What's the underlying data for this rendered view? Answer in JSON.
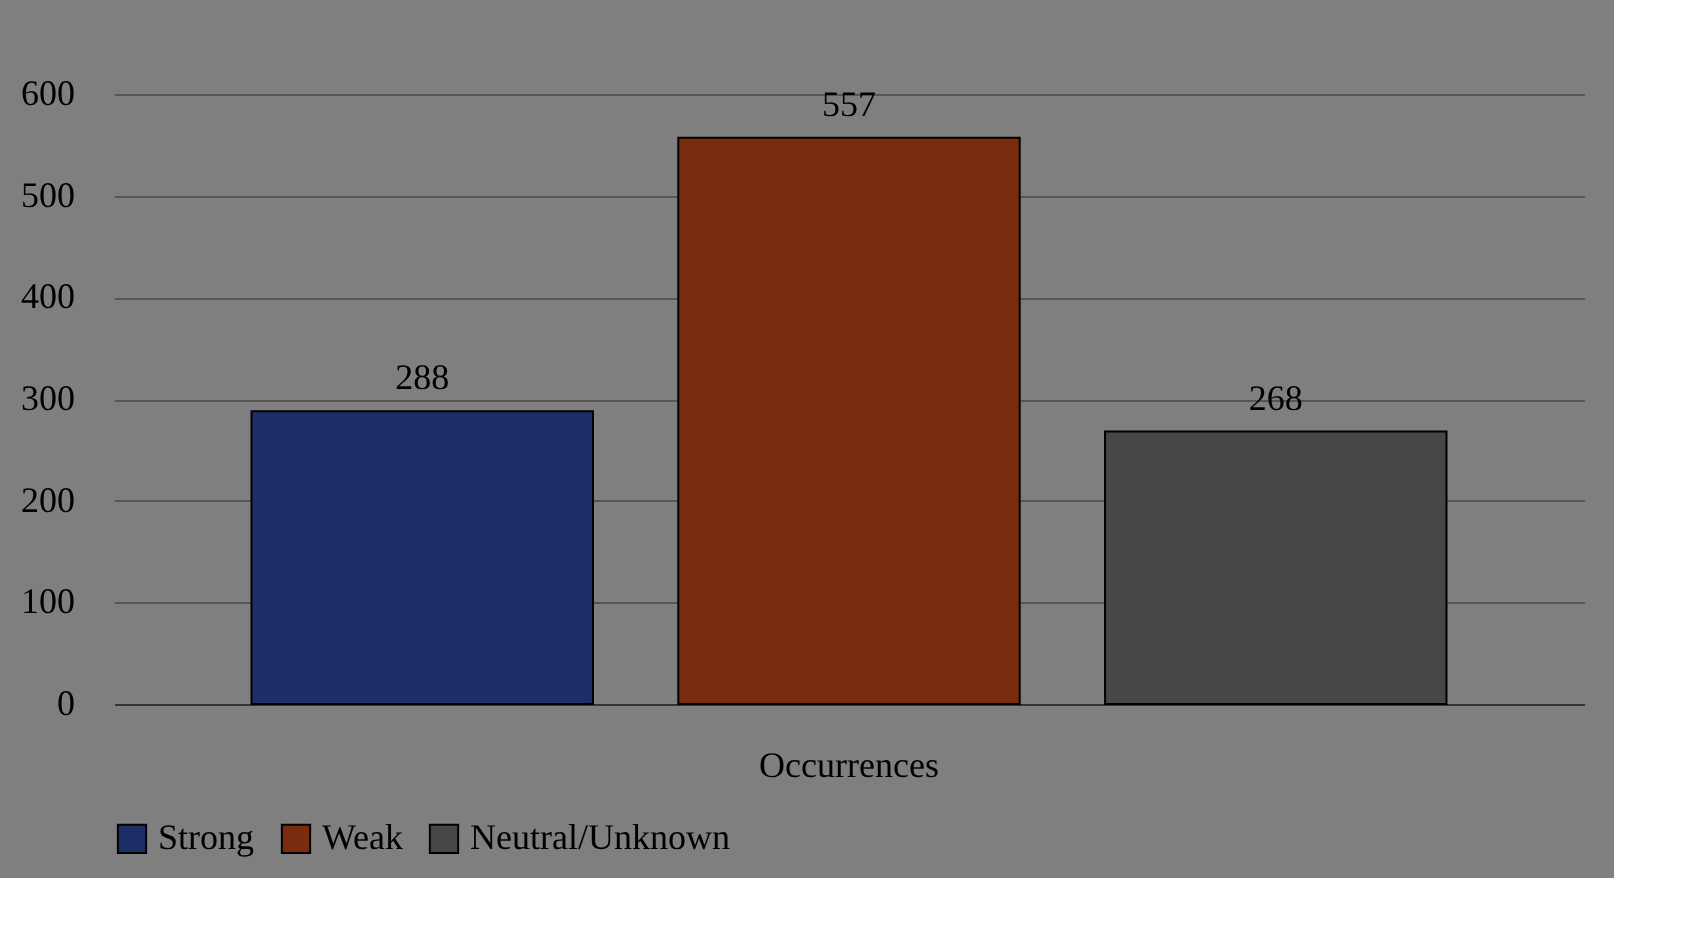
{
  "chart_data": {
    "type": "bar",
    "categories": [
      "Occurrences"
    ],
    "series": [
      {
        "name": "Strong",
        "color": "#1c2f66",
        "values": [
          288
        ]
      },
      {
        "name": "Weak",
        "color": "#7a2d0e",
        "values": [
          557
        ]
      },
      {
        "name": "Neutral/Unknown",
        "color": "#474747",
        "values": [
          268
        ]
      }
    ],
    "ylim": [
      0,
      600
    ],
    "yticks": [
      0,
      100,
      200,
      300,
      400,
      500,
      600
    ],
    "grid": "y",
    "legend": "bottom",
    "data_labels": true
  }
}
